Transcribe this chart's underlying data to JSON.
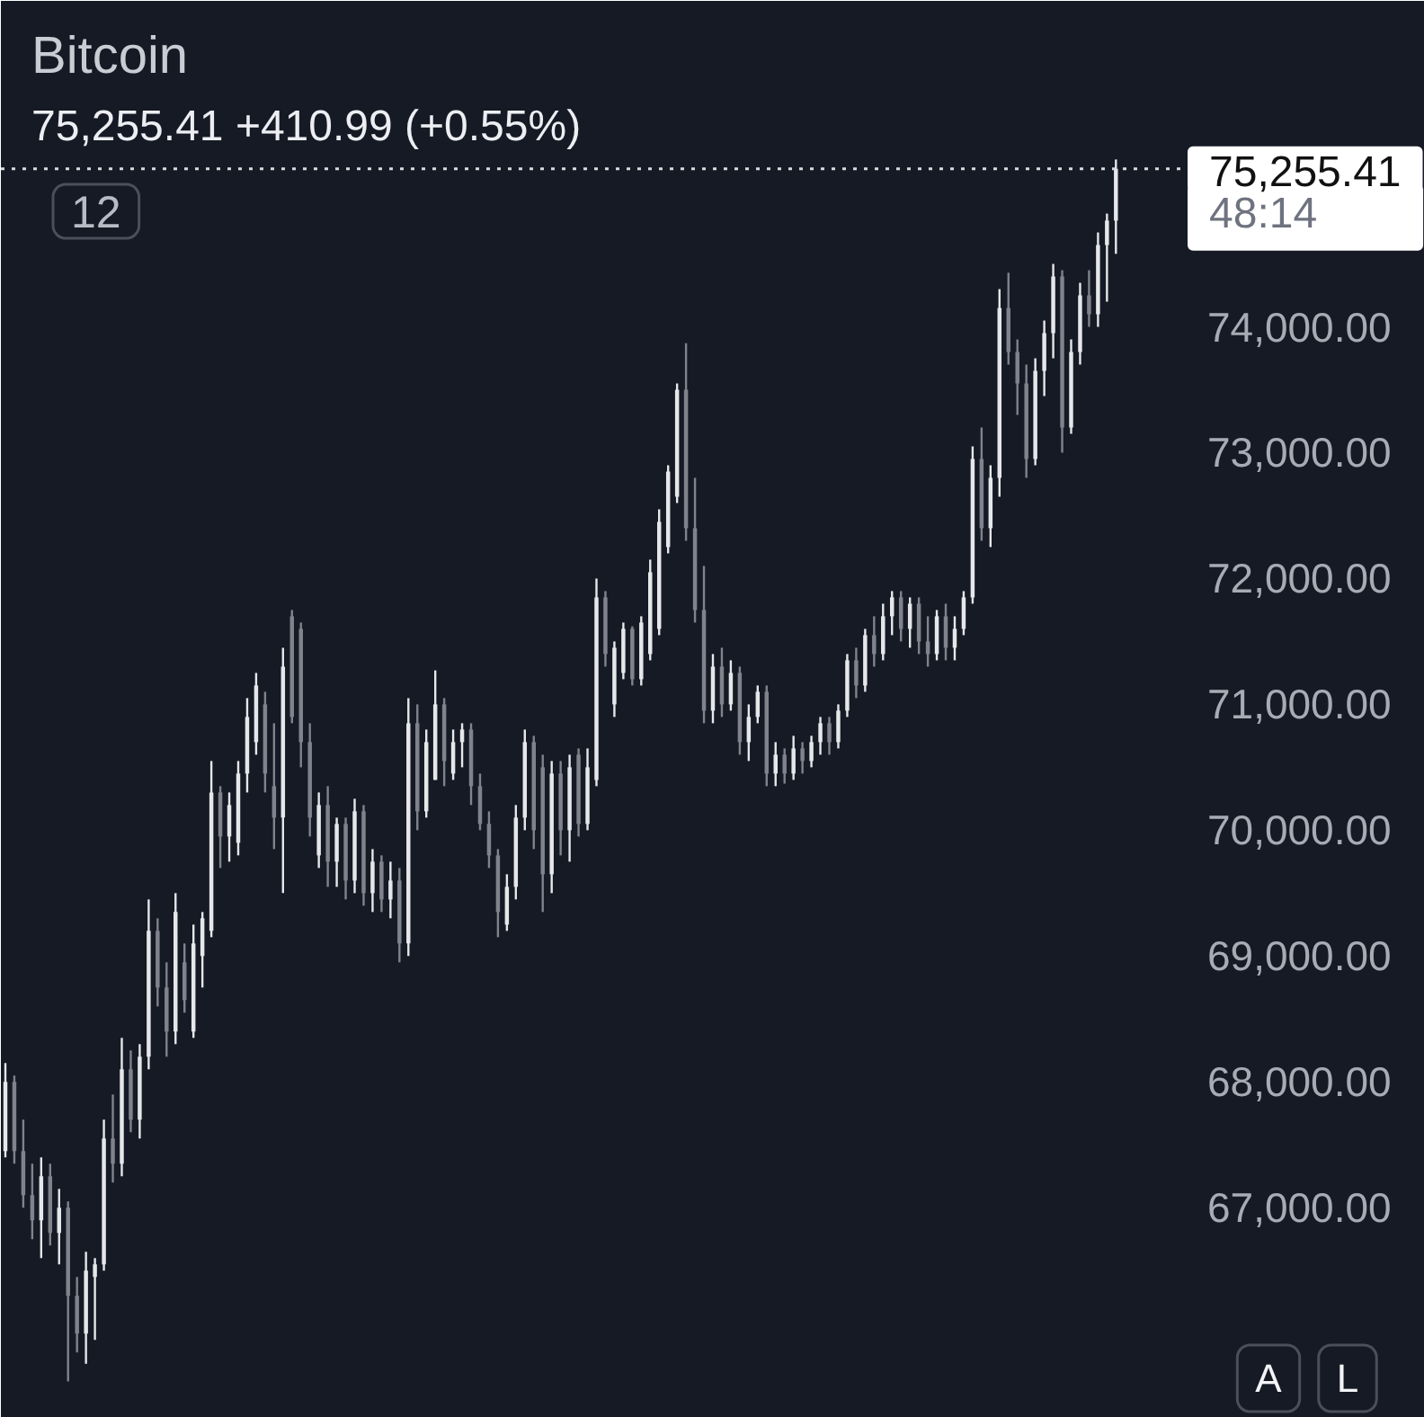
{
  "chart_data": {
    "type": "candlestick",
    "title": "Bitcoin",
    "subtitle": "75,255.41 +410.99 (+0.55%)",
    "categories": [
      null,
      null,
      null,
      null,
      null,
      null,
      null,
      null,
      null,
      null,
      null,
      null,
      null,
      null,
      null,
      null,
      null,
      null,
      null,
      null,
      null,
      null,
      null,
      null,
      null,
      null,
      null,
      null,
      null,
      null,
      null,
      null,
      null,
      null,
      null,
      null,
      null,
      null,
      null,
      null,
      null,
      null,
      null,
      null,
      null,
      null,
      null,
      null,
      null,
      null,
      null,
      null,
      null,
      null,
      null,
      null,
      null,
      null,
      null,
      null,
      null,
      null,
      null,
      null,
      null,
      null,
      null,
      null,
      null,
      null,
      null,
      null,
      null,
      null,
      null,
      null,
      null,
      null,
      null,
      null,
      null,
      null,
      null,
      null,
      null,
      null,
      null,
      null,
      null,
      null,
      null,
      null,
      null,
      null,
      null,
      null,
      null,
      null,
      null,
      null,
      null,
      null,
      null,
      null,
      null,
      null,
      null,
      null,
      null,
      null,
      null,
      null,
      null,
      null,
      null,
      null,
      null,
      null,
      null,
      null,
      null,
      null,
      null,
      null,
      null,
      null,
      null,
      null,
      null,
      null,
      null,
      null,
      null,
      null,
      null,
      null,
      null,
      null,
      null,
      null,
      null,
      null,
      null,
      null,
      null,
      null,
      null,
      null,
      null,
      null,
      null,
      null,
      null,
      null,
      null,
      null,
      null,
      null,
      null
    ],
    "ohlc": [
      [
        67450,
        68150,
        67400,
        68000
      ],
      [
        68000,
        68050,
        67350,
        67450
      ],
      [
        67450,
        67700,
        67000,
        67100
      ],
      [
        67100,
        67350,
        66750,
        66900
      ],
      [
        66900,
        67400,
        66600,
        67250
      ],
      [
        67250,
        67350,
        66700,
        66800
      ],
      [
        66800,
        67150,
        66550,
        67000
      ],
      [
        67000,
        67050,
        65620,
        66300
      ],
      [
        66300,
        66450,
        65850,
        66000
      ],
      [
        66000,
        66650,
        65760,
        66500
      ],
      [
        66450,
        66600,
        65950,
        66550
      ],
      [
        66550,
        67700,
        66500,
        67550
      ],
      [
        67550,
        67900,
        67200,
        67350
      ],
      [
        67350,
        68350,
        67250,
        68100
      ],
      [
        68100,
        68250,
        67600,
        67700
      ],
      [
        67700,
        68300,
        67550,
        68200
      ],
      [
        68200,
        69450,
        68100,
        69200
      ],
      [
        69200,
        69300,
        68600,
        68750
      ],
      [
        68750,
        68950,
        68200,
        68400
      ],
      [
        68400,
        69500,
        68300,
        69350
      ],
      [
        68950,
        69100,
        68550,
        68650
      ],
      [
        68400,
        69250,
        68350,
        69100
      ],
      [
        69000,
        69350,
        68750,
        69300
      ],
      [
        69200,
        70550,
        69150,
        70300
      ],
      [
        70300,
        70350,
        69700,
        69950
      ],
      [
        69950,
        70300,
        69750,
        70200
      ],
      [
        69900,
        70550,
        69800,
        70450
      ],
      [
        70450,
        71050,
        70300,
        70900
      ],
      [
        70700,
        71250,
        70600,
        71150
      ],
      [
        71000,
        71100,
        70300,
        70450
      ],
      [
        70350,
        70850,
        69850,
        70100
      ],
      [
        70100,
        71450,
        69500,
        71300
      ],
      [
        71700,
        71750,
        70850,
        70900
      ],
      [
        71600,
        71650,
        70500,
        70700
      ],
      [
        70700,
        70850,
        69950,
        70100
      ],
      [
        69800,
        70300,
        69700,
        70200
      ],
      [
        70200,
        70350,
        69550,
        69750
      ],
      [
        69750,
        70100,
        69550,
        70050
      ],
      [
        70050,
        70100,
        69450,
        69600
      ],
      [
        69600,
        70250,
        69500,
        70150
      ],
      [
        70150,
        70200,
        69400,
        69500
      ],
      [
        69500,
        69850,
        69350,
        69750
      ],
      [
        69750,
        69800,
        69350,
        69450
      ],
      [
        69450,
        69750,
        69300,
        69600
      ],
      [
        69600,
        69700,
        68950,
        69100
      ],
      [
        69100,
        71050,
        69000,
        70850
      ],
      [
        70850,
        71000,
        70000,
        70150
      ],
      [
        70150,
        70800,
        70100,
        70700
      ],
      [
        70400,
        71270,
        70400,
        71000
      ],
      [
        71000,
        71050,
        70350,
        70550
      ],
      [
        70450,
        70800,
        70400,
        70700
      ],
      [
        70700,
        70850,
        70500,
        70800
      ],
      [
        70800,
        70850,
        70200,
        70350
      ],
      [
        70350,
        70450,
        70000,
        70050
      ],
      [
        70050,
        70150,
        69700,
        69800
      ],
      [
        69800,
        69850,
        69150,
        69350
      ],
      [
        69250,
        69650,
        69200,
        69550
      ],
      [
        69550,
        70200,
        69450,
        70100
      ],
      [
        70100,
        70800,
        70000,
        70700
      ],
      [
        70700,
        70750,
        69850,
        70000
      ],
      [
        70500,
        70600,
        69350,
        69650
      ],
      [
        69650,
        70550,
        69500,
        70450
      ],
      [
        70450,
        70550,
        69800,
        70000
      ],
      [
        70000,
        70600,
        69750,
        70500
      ],
      [
        70600,
        70650,
        69950,
        70050
      ],
      [
        70050,
        70650,
        70000,
        70500
      ],
      [
        70400,
        72000,
        70350,
        71850
      ],
      [
        71850,
        71900,
        71300,
        71400
      ],
      [
        71000,
        71500,
        70900,
        71450
      ],
      [
        71250,
        71650,
        71200,
        71600
      ],
      [
        71600,
        71620,
        71150,
        71200
      ],
      [
        71200,
        71700,
        71150,
        71650
      ],
      [
        71400,
        72150,
        71350,
        72050
      ],
      [
        71600,
        72550,
        71550,
        72450
      ],
      [
        72250,
        72900,
        72200,
        72850
      ],
      [
        72650,
        73550,
        72600,
        73500
      ],
      [
        73500,
        73870,
        72300,
        72400
      ],
      [
        72400,
        72800,
        71650,
        71750
      ],
      [
        71750,
        72100,
        70850,
        70950
      ],
      [
        70950,
        71400,
        70850,
        71300
      ],
      [
        71300,
        71450,
        70900,
        71000
      ],
      [
        71000,
        71350,
        70950,
        71250
      ],
      [
        71250,
        71300,
        70600,
        70700
      ],
      [
        70700,
        71000,
        70550,
        70900
      ],
      [
        70900,
        71150,
        70850,
        71100
      ],
      [
        71100,
        71150,
        70350,
        70450
      ],
      [
        70450,
        70700,
        70350,
        70600
      ],
      [
        70600,
        70650,
        70370,
        70450
      ],
      [
        70450,
        70750,
        70400,
        70650
      ],
      [
        70650,
        70700,
        70450,
        70550
      ],
      [
        70550,
        70750,
        70500,
        70700
      ],
      [
        70700,
        70900,
        70600,
        70850
      ],
      [
        70850,
        70900,
        70600,
        70700
      ],
      [
        70700,
        71000,
        70650,
        70950
      ],
      [
        70950,
        71400,
        70900,
        71350
      ],
      [
        71350,
        71450,
        71050,
        71150
      ],
      [
        71150,
        71600,
        71100,
        71550
      ],
      [
        71550,
        71700,
        71300,
        71400
      ],
      [
        71400,
        71800,
        71350,
        71700
      ],
      [
        71700,
        71900,
        71550,
        71850
      ],
      [
        71850,
        71900,
        71500,
        71600
      ],
      [
        71600,
        71850,
        71450,
        71800
      ],
      [
        71800,
        71850,
        71400,
        71500
      ],
      [
        71500,
        71700,
        71300,
        71400
      ],
      [
        71400,
        71750,
        71350,
        71700
      ],
      [
        71700,
        71800,
        71350,
        71450
      ],
      [
        71450,
        71700,
        71350,
        71600
      ],
      [
        71600,
        71900,
        71550,
        71850
      ],
      [
        71850,
        73050,
        71800,
        72950
      ],
      [
        72950,
        73200,
        72300,
        72400
      ],
      [
        72400,
        72900,
        72250,
        72800
      ],
      [
        72800,
        74300,
        72650,
        74150
      ],
      [
        74150,
        74430,
        73700,
        73800
      ],
      [
        73800,
        73900,
        73300,
        73550
      ],
      [
        73550,
        73700,
        72800,
        72950
      ],
      [
        72950,
        73750,
        72900,
        73650
      ],
      [
        73650,
        74050,
        73450,
        73950
      ],
      [
        73950,
        74500,
        73750,
        74400
      ],
      [
        74400,
        74450,
        73000,
        73200
      ],
      [
        73200,
        73900,
        73150,
        73800
      ],
      [
        73800,
        74350,
        73700,
        74250
      ],
      [
        74250,
        74450,
        74000,
        74100
      ],
      [
        74100,
        74750,
        74000,
        74650
      ],
      [
        74650,
        74900,
        74200,
        74844.42
      ],
      [
        74844.42,
        75330,
        74580,
        75255.41
      ],
      null,
      null,
      null,
      null,
      null,
      null,
      null,
      null,
      null,
      null,
      null,
      null,
      null,
      null,
      null,
      null,
      null,
      null,
      null,
      null,
      null,
      null,
      null,
      null,
      null,
      null,
      null,
      null,
      null,
      null,
      null,
      null,
      null,
      null
    ],
    "colors": [
      "#e6e7ea",
      "#80838c",
      "#80838c",
      "#80838c",
      "#e6e7ea",
      "#80838c",
      "#e6e7ea",
      "#80838c",
      "#80838c",
      "#e6e7ea",
      "#e6e7ea",
      "#e6e7ea",
      "#80838c",
      "#e6e7ea",
      "#80838c",
      "#e6e7ea",
      "#e6e7ea",
      "#80838c",
      "#80838c",
      "#e6e7ea",
      "#80838c",
      "#e6e7ea",
      "#e6e7ea",
      "#e6e7ea",
      "#80838c",
      "#e6e7ea",
      "#e6e7ea",
      "#e6e7ea",
      "#e6e7ea",
      "#80838c",
      "#80838c",
      "#e6e7ea",
      "#80838c",
      "#80838c",
      "#80838c",
      "#e6e7ea",
      "#80838c",
      "#e6e7ea",
      "#80838c",
      "#e6e7ea",
      "#80838c",
      "#e6e7ea",
      "#80838c",
      "#e6e7ea",
      "#80838c",
      "#e6e7ea",
      "#80838c",
      "#e6e7ea",
      "#e6e7ea",
      "#80838c",
      "#e6e7ea",
      "#e6e7ea",
      "#80838c",
      "#80838c",
      "#80838c",
      "#80838c",
      "#e6e7ea",
      "#e6e7ea",
      "#e6e7ea",
      "#80838c",
      "#80838c",
      "#e6e7ea",
      "#80838c",
      "#e6e7ea",
      "#80838c",
      "#e6e7ea",
      "#e6e7ea",
      "#80838c",
      "#e6e7ea",
      "#e6e7ea",
      "#80838c",
      "#e6e7ea",
      "#e6e7ea",
      "#e6e7ea",
      "#e6e7ea",
      "#e6e7ea",
      "#80838c",
      "#80838c",
      "#80838c",
      "#e6e7ea",
      "#80838c",
      "#e6e7ea",
      "#80838c",
      "#e6e7ea",
      "#e6e7ea",
      "#80838c",
      "#e6e7ea",
      "#80838c",
      "#e6e7ea",
      "#80838c",
      "#e6e7ea",
      "#e6e7ea",
      "#80838c",
      "#e6e7ea",
      "#e6e7ea",
      "#80838c",
      "#e6e7ea",
      "#80838c",
      "#e6e7ea",
      "#e6e7ea",
      "#80838c",
      "#e6e7ea",
      "#80838c",
      "#80838c",
      "#e6e7ea",
      "#80838c",
      "#e6e7ea",
      "#e6e7ea",
      "#e6e7ea",
      "#80838c",
      "#e6e7ea",
      "#e6e7ea",
      "#80838c",
      "#80838c",
      "#80838c",
      "#e6e7ea",
      "#e6e7ea",
      "#e6e7ea",
      "#80838c",
      "#e6e7ea",
      "#e6e7ea",
      "#80838c",
      "#e6e7ea",
      "#e6e7ea",
      "#e6e7ea",
      null,
      null,
      null,
      null,
      null,
      null,
      null,
      null,
      null,
      null,
      null,
      null,
      null,
      null,
      null,
      null,
      null,
      null,
      null,
      null,
      null,
      null,
      null,
      null,
      null,
      null,
      null,
      null,
      null,
      null,
      null,
      null,
      null,
      null
    ],
    "ylim": [
      65330,
      76590
    ],
    "yticks": [
      {
        "value": 67000,
        "label": "67,000.00"
      },
      {
        "value": 68000,
        "label": "68,000.00"
      },
      {
        "value": 69000,
        "label": "69,000.00"
      },
      {
        "value": 70000,
        "label": "70,000.00"
      },
      {
        "value": 71000,
        "label": "71,000.00"
      },
      {
        "value": 72000,
        "label": "72,000.00"
      },
      {
        "value": 73000,
        "label": "73,000.00"
      },
      {
        "value": 74000,
        "label": "74,000.00"
      }
    ],
    "tick_labels": "y",
    "ref_lines": [
      {
        "axis": "y",
        "value": 75255.41,
        "label": "75,255.41",
        "color": "#d9dadd",
        "line_style": "dotted"
      }
    ],
    "annotations": [
      "48:14",
      "12",
      "A",
      "L"
    ]
  }
}
